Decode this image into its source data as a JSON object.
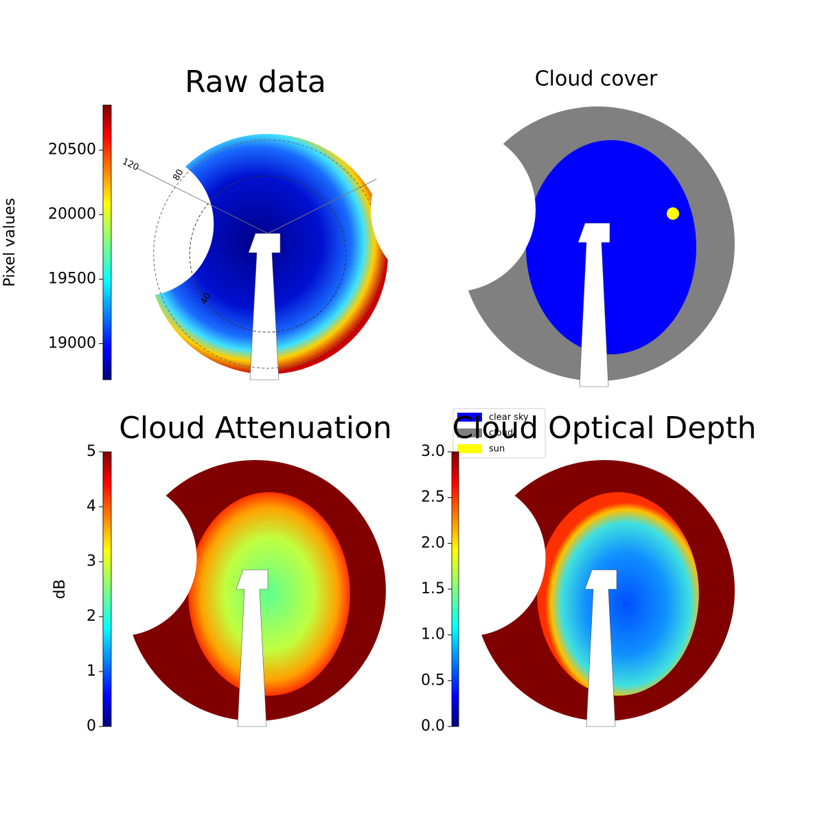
{
  "chart_data": [
    {
      "type": "image",
      "title": "Raw data",
      "colorbar_label": "Pixel values",
      "cmap": "jet",
      "clim": [
        18720,
        20850
      ],
      "cticks": [
        19000,
        19500,
        20000,
        20500
      ],
      "annotations": [
        "120",
        "80",
        "40"
      ]
    },
    {
      "type": "image",
      "title": "Cloud cover",
      "series": [
        {
          "name": "clear sky",
          "color": "#0000ff"
        },
        {
          "name": "cloud",
          "color": "#808080"
        },
        {
          "name": "sun",
          "color": "#ffff00"
        }
      ]
    },
    {
      "type": "image",
      "title": "Cloud Attenuation",
      "colorbar_label": "dB",
      "cmap": "jet",
      "clim": [
        0,
        5
      ],
      "cticks": [
        0,
        1,
        2,
        3,
        4,
        5
      ]
    },
    {
      "type": "image",
      "title": "Cloud Optical Depth",
      "cmap": "jet",
      "clim": [
        0,
        3
      ],
      "cticks": [
        {
          "value": 0,
          "label": "0.0"
        },
        {
          "value": 0.5,
          "label": "0.5"
        },
        {
          "value": 1,
          "label": "1.0"
        },
        {
          "value": 1.5,
          "label": "1.5"
        },
        {
          "value": 2,
          "label": "2.0"
        },
        {
          "value": 2.5,
          "label": "2.5"
        },
        {
          "value": 3,
          "label": "3.0"
        }
      ]
    }
  ]
}
